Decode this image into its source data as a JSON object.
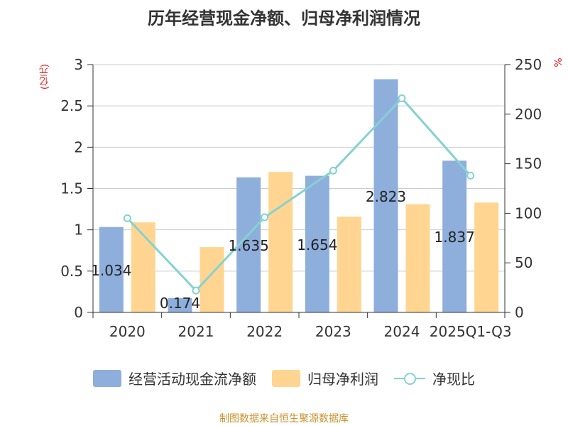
{
  "chart_data": {
    "type": "bar",
    "title": "历年经营现金净额、归母净利润情况",
    "categories": [
      "2020",
      "2021",
      "2022",
      "2023",
      "2024",
      "2025Q1-Q3"
    ],
    "series": [
      {
        "name": "经营活动现金流净额",
        "kind": "bar",
        "axis": "left",
        "color": "#8eaedc",
        "values": [
          1.034,
          0.174,
          1.635,
          1.654,
          2.823,
          1.837
        ],
        "data_labels": [
          "1.034",
          "0.174",
          "1.635",
          "1.654",
          "2.823",
          "1.837"
        ]
      },
      {
        "name": "归母净利润",
        "kind": "bar",
        "axis": "left",
        "color": "#ffd591",
        "values": [
          1.09,
          0.79,
          1.7,
          1.16,
          1.31,
          1.33
        ]
      },
      {
        "name": "净现比",
        "kind": "line",
        "axis": "right",
        "color": "#85d2d2",
        "values": [
          95,
          22,
          96,
          143,
          216,
          138
        ]
      }
    ],
    "y_left": {
      "unit": "(亿元)",
      "ylim": [
        0,
        3
      ],
      "ticks": [
        "0",
        "0.5",
        "1",
        "1.5",
        "2",
        "2.5",
        "3"
      ]
    },
    "y_right": {
      "unit": "%",
      "ylim": [
        0,
        250
      ],
      "ticks": [
        "0",
        "50",
        "100",
        "150",
        "200",
        "250"
      ]
    },
    "grid": true,
    "legend": "bottom"
  },
  "source": "制图数据来自恒生聚源数据库"
}
